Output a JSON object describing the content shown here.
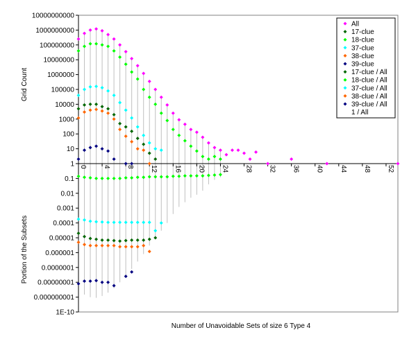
{
  "chart_data": {
    "type": "scatter",
    "xlabel": "Number of Unavoidable Sets of size 6 Type 4",
    "ylabel_top": "Grid Count",
    "ylabel_bottom": "Portion of the Subsets",
    "ylim_log10": [
      -10,
      10
    ],
    "xlim": [
      0,
      54
    ],
    "y_tick_labels": [
      "10000000000",
      "1000000000",
      "100000000",
      "10000000",
      "1000000",
      "100000",
      "10000",
      "1000",
      "100",
      "10",
      "1",
      "0.1",
      "0.01",
      "0.001",
      "0.0001",
      "0.00001",
      "0.000001",
      "0.0000001",
      "0.00000001",
      "0.000000001",
      "1E-10"
    ],
    "x_ticks": [
      0,
      4,
      8,
      12,
      16,
      20,
      24,
      28,
      32,
      36,
      40,
      44,
      48,
      52
    ],
    "x_tick_labels": [
      "0",
      "4",
      "8",
      "12",
      "16",
      "20",
      "24",
      "28",
      "32",
      "36",
      "40",
      "44",
      "48",
      "52"
    ],
    "grid": false,
    "legend": "top-right",
    "series": [
      {
        "name": "All",
        "color": "#ff00ff",
        "x": [
          0,
          1,
          2,
          3,
          4,
          5,
          6,
          7,
          8,
          9,
          10,
          11,
          12,
          13,
          14,
          15,
          16,
          17,
          18,
          19,
          20,
          21,
          22,
          23,
          24,
          25,
          26,
          27,
          28,
          29,
          30,
          32,
          36,
          42,
          54
        ],
        "y": [
          250000000.0,
          600000000.0,
          1000000000.0,
          1200000000.0,
          900000000.0,
          500000000.0,
          250000000.0,
          100000000.0,
          35000000.0,
          12000000.0,
          4000000.0,
          1200000.0,
          350000.0,
          100000.0,
          30000.0,
          9000,
          2500,
          900,
          450,
          200,
          130,
          60,
          25,
          12,
          8,
          4,
          8,
          8,
          5,
          2,
          6,
          1,
          2,
          1,
          1
        ]
      },
      {
        "name": "17-clue",
        "color": "#006600",
        "x": [
          0,
          1,
          2,
          3,
          4,
          5,
          6,
          7,
          8,
          9,
          10,
          11,
          12,
          13
        ],
        "y": [
          5000,
          9000,
          10000.0,
          10000.0,
          7000,
          5000,
          2000,
          500,
          300,
          150,
          50,
          20,
          5,
          2
        ]
      },
      {
        "name": "18-clue",
        "color": "#00ff00",
        "x": [
          0,
          1,
          2,
          3,
          4,
          5,
          6,
          7,
          8,
          9,
          10,
          11,
          12,
          13,
          14,
          15,
          16,
          17,
          18,
          19,
          20,
          21,
          22,
          23,
          24
        ],
        "y": [
          40000000.0,
          80000000.0,
          120000000.0,
          120000000.0,
          100000000.0,
          80000000.0,
          40000000.0,
          15000000.0,
          5000000.0,
          1500000.0,
          500000.0,
          100000.0,
          30000.0,
          10000.0,
          2500,
          800,
          200,
          80,
          35,
          15,
          7,
          3,
          2,
          3,
          2
        ]
      },
      {
        "name": "37-clue",
        "color": "#00ffff",
        "x": [
          0,
          1,
          2,
          3,
          4,
          5,
          6,
          7,
          8,
          9,
          10,
          11,
          12,
          13,
          14
        ],
        "y": [
          40000.0,
          100000.0,
          150000.0,
          160000.0,
          130000.0,
          80000.0,
          40000.0,
          13000.0,
          4000,
          1200,
          300,
          80,
          25,
          10,
          8
        ]
      },
      {
        "name": "38-clue",
        "color": "#ff6600",
        "x": [
          0,
          1,
          2,
          3,
          4,
          5,
          6,
          7,
          8,
          9,
          10,
          11,
          12
        ],
        "y": [
          1200,
          3000,
          4000,
          4500,
          3500,
          2500,
          1000,
          200,
          70,
          30,
          10,
          8,
          1
        ]
      },
      {
        "name": "39-clue",
        "color": "#000080",
        "x": [
          0,
          1,
          2,
          3,
          4,
          5,
          6,
          8,
          9
        ],
        "y": [
          2,
          8,
          12,
          15,
          10,
          7,
          2,
          1,
          1
        ]
      },
      {
        "name": "17-clue / All",
        "color": "#006600",
        "x": [
          0,
          1,
          2,
          3,
          4,
          5,
          6,
          7,
          8,
          9,
          10,
          11,
          12,
          13
        ],
        "y": [
          2e-05,
          1.2e-05,
          9e-06,
          8e-06,
          7e-06,
          7e-06,
          6.5e-06,
          6e-06,
          6.5e-06,
          7e-06,
          7e-06,
          7e-06,
          8e-06,
          1e-05
        ]
      },
      {
        "name": "18-clue / All",
        "color": "#00ff00",
        "x": [
          0,
          1,
          2,
          3,
          4,
          5,
          6,
          7,
          8,
          9,
          10,
          11,
          12,
          13,
          14,
          15,
          16,
          17,
          18,
          19,
          20,
          21,
          22,
          23,
          24
        ],
        "y": [
          0.14,
          0.12,
          0.11,
          0.1,
          0.1,
          0.1,
          0.1,
          0.1,
          0.11,
          0.11,
          0.12,
          0.12,
          0.13,
          0.13,
          0.13,
          0.13,
          0.14,
          0.14,
          0.15,
          0.15,
          0.15,
          0.15,
          0.16,
          0.17,
          0.18
        ]
      },
      {
        "name": "37-clue / All",
        "color": "#00ffff",
        "x": [
          0,
          1,
          2,
          3,
          4,
          5,
          6,
          7,
          8,
          9,
          10,
          11,
          12,
          13,
          14
        ],
        "y": [
          0.00018,
          0.00016,
          0.00013,
          0.00012,
          0.000115,
          0.00011,
          0.00011,
          0.00011,
          0.00011,
          0.00011,
          0.00011,
          0.00011,
          0.00011,
          3e-05,
          0.0001
        ]
      },
      {
        "name": "38-clue / All",
        "color": "#ff6600",
        "x": [
          0,
          1,
          2,
          3,
          4,
          5,
          6,
          7,
          8,
          9,
          10,
          11,
          12
        ],
        "y": [
          5e-06,
          3.5e-06,
          3e-06,
          3e-06,
          3e-06,
          3e-06,
          3e-06,
          2.5e-06,
          2.5e-06,
          2.5e-06,
          2.5e-06,
          3e-06,
          1.2e-06
        ]
      },
      {
        "name": "39-clue / All",
        "color": "#000080",
        "x": [
          0,
          1,
          2,
          3,
          4,
          5,
          6,
          8,
          9
        ],
        "y": [
          8e-09,
          1.2e-08,
          1.2e-08,
          1.3e-08,
          1e-08,
          1e-08,
          6e-09,
          2.5e-08,
          5e-08
        ]
      },
      {
        "name": "1 / All",
        "color": "#000000",
        "x": [],
        "y": []
      }
    ],
    "drop_lines_series": "1 / All",
    "drop_lines": {
      "x": [
        0,
        1,
        2,
        3,
        4,
        5,
        6,
        7,
        8,
        9,
        10,
        11,
        12,
        13,
        14,
        15,
        16,
        17,
        18,
        19,
        20,
        21,
        22,
        23,
        24
      ],
      "y": [
        5e-09,
        1.5e-09,
        1e-09,
        9e-10,
        1.2e-09,
        2e-09,
        4e-09,
        1e-08,
        3e-08,
        8e-08,
        2.5e-07,
        8e-07,
        3e-06,
        1e-05,
        3e-05,
        0.0001,
        0.0004,
        0.0012,
        0.0025,
        0.005,
        0.008,
        0.015,
        0.04,
        0.08,
        0.12
      ]
    }
  }
}
